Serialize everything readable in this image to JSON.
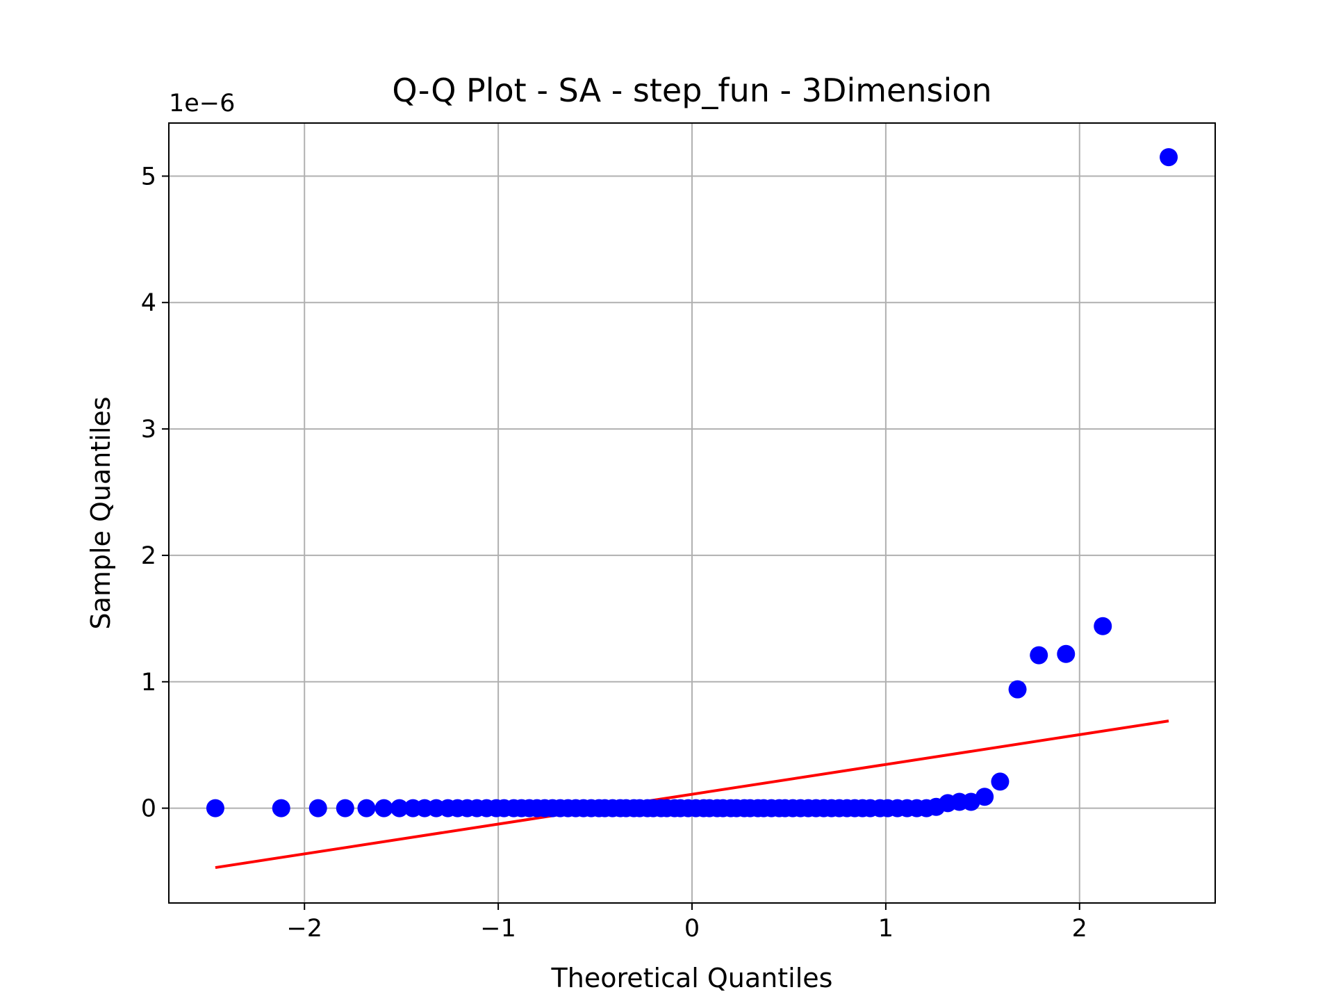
{
  "chart_data": {
    "type": "scatter",
    "title": "Q-Q Plot - SA - step_fun - 3Dimension",
    "xlabel": "Theoretical Quantiles",
    "ylabel": "Sample Quantiles",
    "y_offset_label": "1e−6",
    "xlim": [
      -2.7,
      2.7
    ],
    "ylim": [
      -0.75,
      5.42
    ],
    "grid": true,
    "x_ticks": [
      -2,
      -1,
      0,
      1,
      2
    ],
    "x_tick_labels": [
      "−2",
      "−1",
      "0",
      "1",
      "2"
    ],
    "y_ticks": [
      0,
      1,
      2,
      3,
      4,
      5
    ],
    "y_tick_labels": [
      "0",
      "1",
      "2",
      "3",
      "4",
      "5"
    ],
    "point_color": "#0000ff",
    "line_color": "#ff0000",
    "points": {
      "x": [
        -2.46,
        -2.12,
        -1.93,
        -1.79,
        -1.68,
        -1.59,
        -1.51,
        -1.44,
        -1.38,
        -1.32,
        -1.26,
        -1.21,
        -1.16,
        -1.11,
        -1.06,
        -1.01,
        -0.97,
        -0.92,
        -0.88,
        -0.84,
        -0.8,
        -0.76,
        -0.72,
        -0.68,
        -0.64,
        -0.6,
        -0.56,
        -0.52,
        -0.48,
        -0.45,
        -0.41,
        -0.37,
        -0.34,
        -0.3,
        -0.27,
        -0.23,
        -0.2,
        -0.16,
        -0.13,
        -0.09,
        -0.06,
        -0.02,
        0.02,
        0.06,
        0.09,
        0.13,
        0.16,
        0.2,
        0.23,
        0.27,
        0.3,
        0.34,
        0.37,
        0.41,
        0.45,
        0.48,
        0.52,
        0.56,
        0.6,
        0.64,
        0.68,
        0.72,
        0.76,
        0.8,
        0.84,
        0.88,
        0.92,
        0.97,
        1.01,
        1.06,
        1.11,
        1.16,
        1.21,
        1.26,
        1.32,
        1.38,
        1.44,
        1.51,
        1.59,
        1.68,
        1.79,
        1.93,
        2.12,
        2.46
      ],
      "y": [
        0,
        0,
        0,
        0,
        0,
        0,
        0,
        0,
        0,
        0,
        0,
        0,
        0,
        0,
        0,
        0,
        0,
        0,
        0,
        0,
        0,
        0,
        0,
        0,
        0,
        0,
        0,
        0,
        0,
        0,
        0,
        0,
        0,
        0,
        0,
        0,
        0,
        0,
        0,
        0,
        0,
        0,
        0,
        0,
        0,
        0,
        0,
        0,
        0,
        0,
        0,
        0,
        0,
        0,
        0,
        0,
        0,
        0,
        0,
        0,
        0,
        0,
        0,
        0,
        0,
        0,
        0,
        0,
        0,
        0,
        0,
        0,
        0,
        0.01,
        0.04,
        0.05,
        0.05,
        0.09,
        0.21,
        0.94,
        1.21,
        1.22,
        1.44,
        5.15
      ]
    },
    "reference_line": {
      "x": [
        -2.46,
        2.46
      ],
      "y": [
        -0.47,
        0.69
      ]
    }
  }
}
